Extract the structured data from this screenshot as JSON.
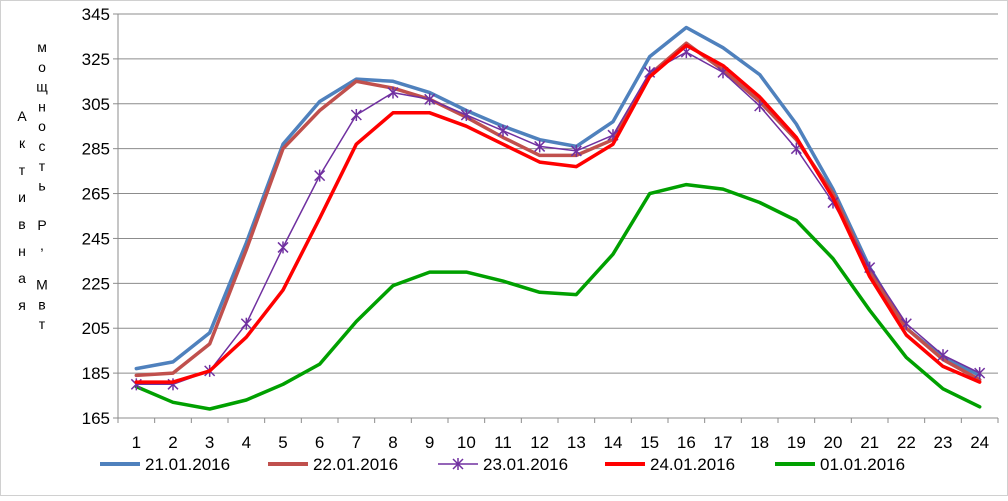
{
  "chart_data": {
    "type": "line",
    "ylabel_left": "Активная",
    "ylabel_right": "мощность Р, Мвт",
    "ylim": [
      165,
      345
    ],
    "yticks": [
      165,
      185,
      205,
      225,
      245,
      265,
      285,
      305,
      325,
      345
    ],
    "x": [
      1,
      2,
      3,
      4,
      5,
      6,
      7,
      8,
      9,
      10,
      11,
      12,
      13,
      14,
      15,
      16,
      17,
      18,
      19,
      20,
      21,
      22,
      23,
      24
    ],
    "grid": "horizontal",
    "legend_position": "bottom",
    "series": [
      {
        "name": "21.01.2016",
        "color": "#4f81bd",
        "marker": "none",
        "values": [
          187,
          190,
          203,
          243,
          287,
          306,
          316,
          315,
          310,
          302,
          295,
          289,
          286,
          297,
          326,
          339,
          330,
          318,
          296,
          267,
          232,
          205,
          192,
          184
        ]
      },
      {
        "name": "22.01.2016",
        "color": "#c0504d",
        "marker": "none",
        "values": [
          184,
          185,
          198,
          240,
          285,
          302,
          315,
          312,
          307,
          299,
          290,
          282,
          282,
          289,
          318,
          332,
          320,
          306,
          289,
          265,
          230,
          205,
          191,
          182
        ]
      },
      {
        "name": "23.01.2016",
        "color": "#7030a0",
        "marker": "star",
        "values": [
          180,
          180,
          186,
          207,
          241,
          273,
          300,
          310,
          307,
          300,
          293,
          286,
          284,
          291,
          319,
          328,
          319,
          304,
          285,
          261,
          232,
          207,
          193,
          185
        ]
      },
      {
        "name": "24.01.2016",
        "color": "#ff0000",
        "marker": "none",
        "values": [
          181,
          181,
          186,
          201,
          222,
          254,
          287,
          301,
          301,
          295,
          287,
          279,
          277,
          287,
          317,
          331,
          322,
          308,
          290,
          263,
          228,
          202,
          188,
          181
        ]
      },
      {
        "name": "01.01.2016",
        "color": "#00a000",
        "marker": "none",
        "values": [
          179,
          172,
          169,
          173,
          180,
          189,
          208,
          224,
          230,
          230,
          226,
          221,
          220,
          238,
          265,
          269,
          267,
          261,
          253,
          236,
          213,
          192,
          178,
          170
        ]
      }
    ]
  }
}
